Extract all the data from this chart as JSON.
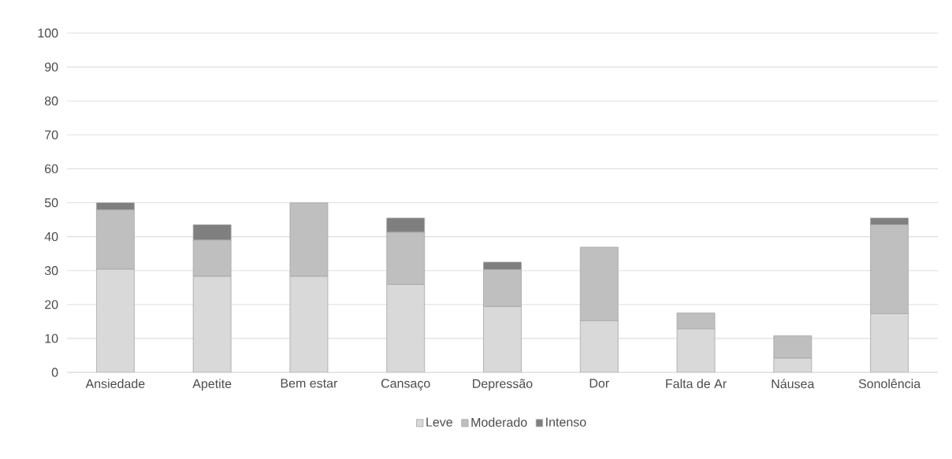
{
  "chart_data": {
    "type": "bar",
    "stacked": true,
    "categories": [
      "Ansiedade",
      "Apetite",
      "Bem estar",
      "Cansaço",
      "Depressão",
      "Dor",
      "Falta de Ar",
      "Náusea",
      "Sonolência"
    ],
    "series": [
      {
        "name": "Leve",
        "color": "#d9d9d9",
        "values": [
          30.4,
          28.3,
          28.3,
          25.9,
          19.4,
          15.2,
          12.8,
          4.2,
          17.3
        ]
      },
      {
        "name": "Moderado",
        "color": "#bfbfbf",
        "values": [
          17.5,
          10.7,
          21.7,
          15.4,
          10.9,
          21.7,
          4.7,
          6.6,
          26.2
        ]
      },
      {
        "name": "Intenso",
        "color": "#7f7f7f",
        "values": [
          2.1,
          4.5,
          0,
          4.2,
          2.2,
          0,
          0,
          0,
          2.0
        ]
      }
    ],
    "ylim": [
      0,
      100
    ],
    "yticks": [
      0,
      10,
      20,
      30,
      40,
      50,
      60,
      70,
      80,
      90,
      100
    ],
    "grid": "y",
    "legend": "bottom"
  }
}
